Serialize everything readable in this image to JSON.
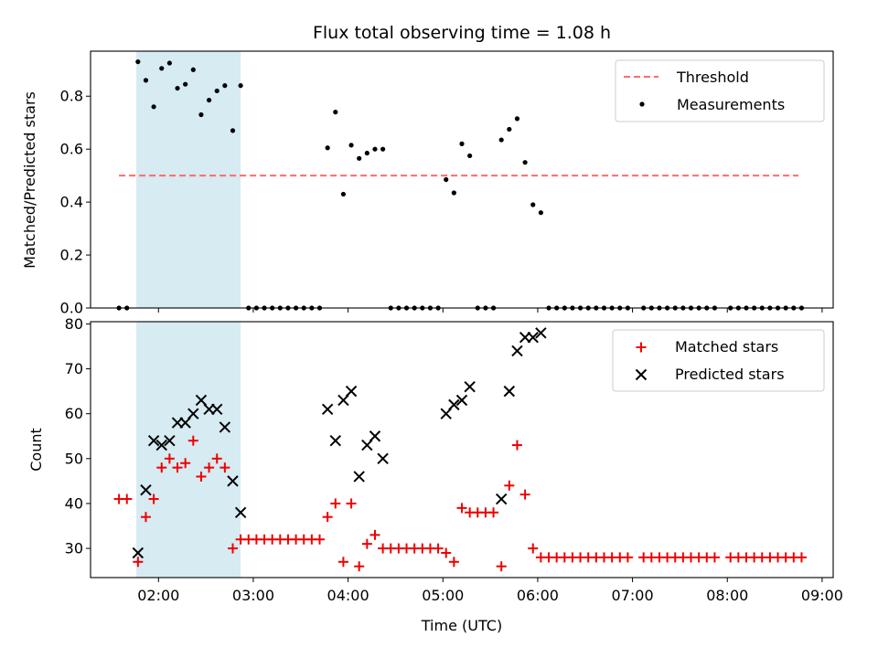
{
  "colors": {
    "shade": "#add8e6",
    "threshold": "#ff6b6b",
    "measurements": "#000000",
    "matched": "#ee0000",
    "predicted": "#000000"
  },
  "chart_data": [
    {
      "type": "scatter",
      "title": "Flux total observing time = 1.08 h",
      "xlabel": "",
      "ylabel": "Matched/Predicted stars",
      "x_unit": "hours UTC",
      "xlim": [
        "01:17",
        "09:07"
      ],
      "ylim": [
        0,
        0.97
      ],
      "yticks": [
        0.0,
        0.2,
        0.4,
        0.6,
        0.8
      ],
      "ytick_labels": [
        "0.0",
        "0.2",
        "0.4",
        "0.6",
        "0.8"
      ],
      "shaded_span": {
        "x0": "01:46",
        "x1": "02:52"
      },
      "legend_position": "upper right",
      "threshold": {
        "name": "Threshold",
        "y": 0.5,
        "x0": "01:35",
        "x1": "08:45"
      },
      "series": [
        {
          "name": "Measurements",
          "marker": "dot",
          "points": [
            [
              "01:35",
              0
            ],
            [
              "01:40",
              0
            ],
            [
              "01:47",
              0.93
            ],
            [
              "01:52",
              0.86
            ],
            [
              "01:57",
              0.76
            ],
            [
              "02:02",
              0.905
            ],
            [
              "02:07",
              0.925
            ],
            [
              "02:12",
              0.83
            ],
            [
              "02:17",
              0.845
            ],
            [
              "02:22",
              0.9
            ],
            [
              "02:27",
              0.73
            ],
            [
              "02:32",
              0.785
            ],
            [
              "02:37",
              0.82
            ],
            [
              "02:42",
              0.84
            ],
            [
              "02:47",
              0.67
            ],
            [
              "02:52",
              0.84
            ],
            [
              "02:57",
              0
            ],
            [
              "03:02",
              0
            ],
            [
              "03:07",
              0
            ],
            [
              "03:12",
              0
            ],
            [
              "03:17",
              0
            ],
            [
              "03:22",
              0
            ],
            [
              "03:27",
              0
            ],
            [
              "03:32",
              0
            ],
            [
              "03:37",
              0
            ],
            [
              "03:42",
              0
            ],
            [
              "03:47",
              0.605
            ],
            [
              "03:52",
              0.74
            ],
            [
              "03:57",
              0.43
            ],
            [
              "04:02",
              0.615
            ],
            [
              "04:07",
              0.565
            ],
            [
              "04:12",
              0.585
            ],
            [
              "04:17",
              0.6
            ],
            [
              "04:22",
              0.6
            ],
            [
              "04:27",
              0
            ],
            [
              "04:32",
              0
            ],
            [
              "04:37",
              0
            ],
            [
              "04:42",
              0
            ],
            [
              "04:47",
              0
            ],
            [
              "04:52",
              0
            ],
            [
              "04:57",
              0
            ],
            [
              "05:02",
              0.485
            ],
            [
              "05:07",
              0.435
            ],
            [
              "05:12",
              0.62
            ],
            [
              "05:17",
              0.575
            ],
            [
              "05:22",
              0
            ],
            [
              "05:27",
              0
            ],
            [
              "05:32",
              0
            ],
            [
              "05:37",
              0.635
            ],
            [
              "05:42",
              0.675
            ],
            [
              "05:47",
              0.715
            ],
            [
              "05:52",
              0.55
            ],
            [
              "05:57",
              0.39
            ],
            [
              "06:02",
              0.36
            ],
            [
              "06:07",
              0
            ],
            [
              "06:12",
              0
            ],
            [
              "06:17",
              0
            ],
            [
              "06:22",
              0
            ],
            [
              "06:27",
              0
            ],
            [
              "06:32",
              0
            ],
            [
              "06:37",
              0
            ],
            [
              "06:42",
              0
            ],
            [
              "06:47",
              0
            ],
            [
              "06:52",
              0
            ],
            [
              "06:57",
              0
            ],
            [
              "07:07",
              0
            ],
            [
              "07:12",
              0
            ],
            [
              "07:17",
              0
            ],
            [
              "07:22",
              0
            ],
            [
              "07:27",
              0
            ],
            [
              "07:32",
              0
            ],
            [
              "07:37",
              0
            ],
            [
              "07:42",
              0
            ],
            [
              "07:47",
              0
            ],
            [
              "07:52",
              0
            ],
            [
              "08:02",
              0
            ],
            [
              "08:07",
              0
            ],
            [
              "08:12",
              0
            ],
            [
              "08:17",
              0
            ],
            [
              "08:22",
              0
            ],
            [
              "08:27",
              0
            ],
            [
              "08:32",
              0
            ],
            [
              "08:37",
              0
            ],
            [
              "08:42",
              0
            ],
            [
              "08:47",
              0
            ]
          ]
        }
      ]
    },
    {
      "type": "scatter",
      "title": "",
      "xlabel": "Time (UTC)",
      "ylabel": "Count",
      "x_unit": "hours UTC",
      "xlim": [
        "01:17",
        "09:07"
      ],
      "ylim": [
        23.5,
        80.5
      ],
      "yticks": [
        30,
        40,
        50,
        60,
        70,
        80
      ],
      "ytick_labels": [
        "30",
        "40",
        "50",
        "60",
        "70",
        "80"
      ],
      "xticks": [
        "02:00",
        "03:00",
        "04:00",
        "05:00",
        "06:00",
        "07:00",
        "08:00",
        "09:00"
      ],
      "xtick_labels": [
        "02:00",
        "03:00",
        "04:00",
        "05:00",
        "06:00",
        "07:00",
        "08:00",
        "09:00"
      ],
      "shaded_span": {
        "x0": "01:46",
        "x1": "02:52"
      },
      "legend_position": "upper right",
      "series": [
        {
          "name": "Matched stars",
          "marker": "plus",
          "points": [
            [
              "01:35",
              41
            ],
            [
              "01:40",
              41
            ],
            [
              "01:47",
              27
            ],
            [
              "01:52",
              37
            ],
            [
              "01:57",
              41
            ],
            [
              "02:02",
              48
            ],
            [
              "02:07",
              50
            ],
            [
              "02:12",
              48
            ],
            [
              "02:17",
              49
            ],
            [
              "02:22",
              54
            ],
            [
              "02:27",
              46
            ],
            [
              "02:32",
              48
            ],
            [
              "02:37",
              50
            ],
            [
              "02:42",
              48
            ],
            [
              "02:47",
              30
            ],
            [
              "02:52",
              32
            ],
            [
              "02:57",
              32
            ],
            [
              "03:02",
              32
            ],
            [
              "03:07",
              32
            ],
            [
              "03:12",
              32
            ],
            [
              "03:17",
              32
            ],
            [
              "03:22",
              32
            ],
            [
              "03:27",
              32
            ],
            [
              "03:32",
              32
            ],
            [
              "03:37",
              32
            ],
            [
              "03:42",
              32
            ],
            [
              "03:47",
              37
            ],
            [
              "03:52",
              40
            ],
            [
              "03:57",
              27
            ],
            [
              "04:02",
              40
            ],
            [
              "04:07",
              26
            ],
            [
              "04:12",
              31
            ],
            [
              "04:17",
              33
            ],
            [
              "04:22",
              30
            ],
            [
              "04:27",
              30
            ],
            [
              "04:32",
              30
            ],
            [
              "04:37",
              30
            ],
            [
              "04:42",
              30
            ],
            [
              "04:47",
              30
            ],
            [
              "04:52",
              30
            ],
            [
              "04:57",
              30
            ],
            [
              "05:02",
              29
            ],
            [
              "05:07",
              27
            ],
            [
              "05:12",
              39
            ],
            [
              "05:17",
              38
            ],
            [
              "05:22",
              38
            ],
            [
              "05:27",
              38
            ],
            [
              "05:32",
              38
            ],
            [
              "05:37",
              26
            ],
            [
              "05:42",
              44
            ],
            [
              "05:47",
              53
            ],
            [
              "05:52",
              42
            ],
            [
              "05:57",
              30
            ],
            [
              "06:02",
              28
            ],
            [
              "06:07",
              28
            ],
            [
              "06:12",
              28
            ],
            [
              "06:17",
              28
            ],
            [
              "06:22",
              28
            ],
            [
              "06:27",
              28
            ],
            [
              "06:32",
              28
            ],
            [
              "06:37",
              28
            ],
            [
              "06:42",
              28
            ],
            [
              "06:47",
              28
            ],
            [
              "06:52",
              28
            ],
            [
              "06:57",
              28
            ],
            [
              "07:07",
              28
            ],
            [
              "07:12",
              28
            ],
            [
              "07:17",
              28
            ],
            [
              "07:22",
              28
            ],
            [
              "07:27",
              28
            ],
            [
              "07:32",
              28
            ],
            [
              "07:37",
              28
            ],
            [
              "07:42",
              28
            ],
            [
              "07:47",
              28
            ],
            [
              "07:52",
              28
            ],
            [
              "08:02",
              28
            ],
            [
              "08:07",
              28
            ],
            [
              "08:12",
              28
            ],
            [
              "08:17",
              28
            ],
            [
              "08:22",
              28
            ],
            [
              "08:27",
              28
            ],
            [
              "08:32",
              28
            ],
            [
              "08:37",
              28
            ],
            [
              "08:42",
              28
            ],
            [
              "08:47",
              28
            ]
          ]
        },
        {
          "name": "Predicted stars",
          "marker": "x",
          "points": [
            [
              "01:47",
              29
            ],
            [
              "01:52",
              43
            ],
            [
              "01:57",
              54
            ],
            [
              "02:02",
              53
            ],
            [
              "02:07",
              54
            ],
            [
              "02:12",
              58
            ],
            [
              "02:17",
              58
            ],
            [
              "02:22",
              60
            ],
            [
              "02:27",
              63
            ],
            [
              "02:32",
              61
            ],
            [
              "02:37",
              61
            ],
            [
              "02:42",
              57
            ],
            [
              "02:47",
              45
            ],
            [
              "02:52",
              38
            ],
            [
              "03:47",
              61
            ],
            [
              "03:52",
              54
            ],
            [
              "03:57",
              63
            ],
            [
              "04:02",
              65
            ],
            [
              "04:07",
              46
            ],
            [
              "04:12",
              53
            ],
            [
              "04:17",
              55
            ],
            [
              "04:22",
              50
            ],
            [
              "05:02",
              60
            ],
            [
              "05:07",
              62
            ],
            [
              "05:12",
              63
            ],
            [
              "05:17",
              66
            ],
            [
              "05:37",
              41
            ],
            [
              "05:42",
              65
            ],
            [
              "05:47",
              74
            ],
            [
              "05:52",
              77
            ],
            [
              "05:57",
              77
            ],
            [
              "06:02",
              78
            ]
          ]
        }
      ]
    }
  ]
}
